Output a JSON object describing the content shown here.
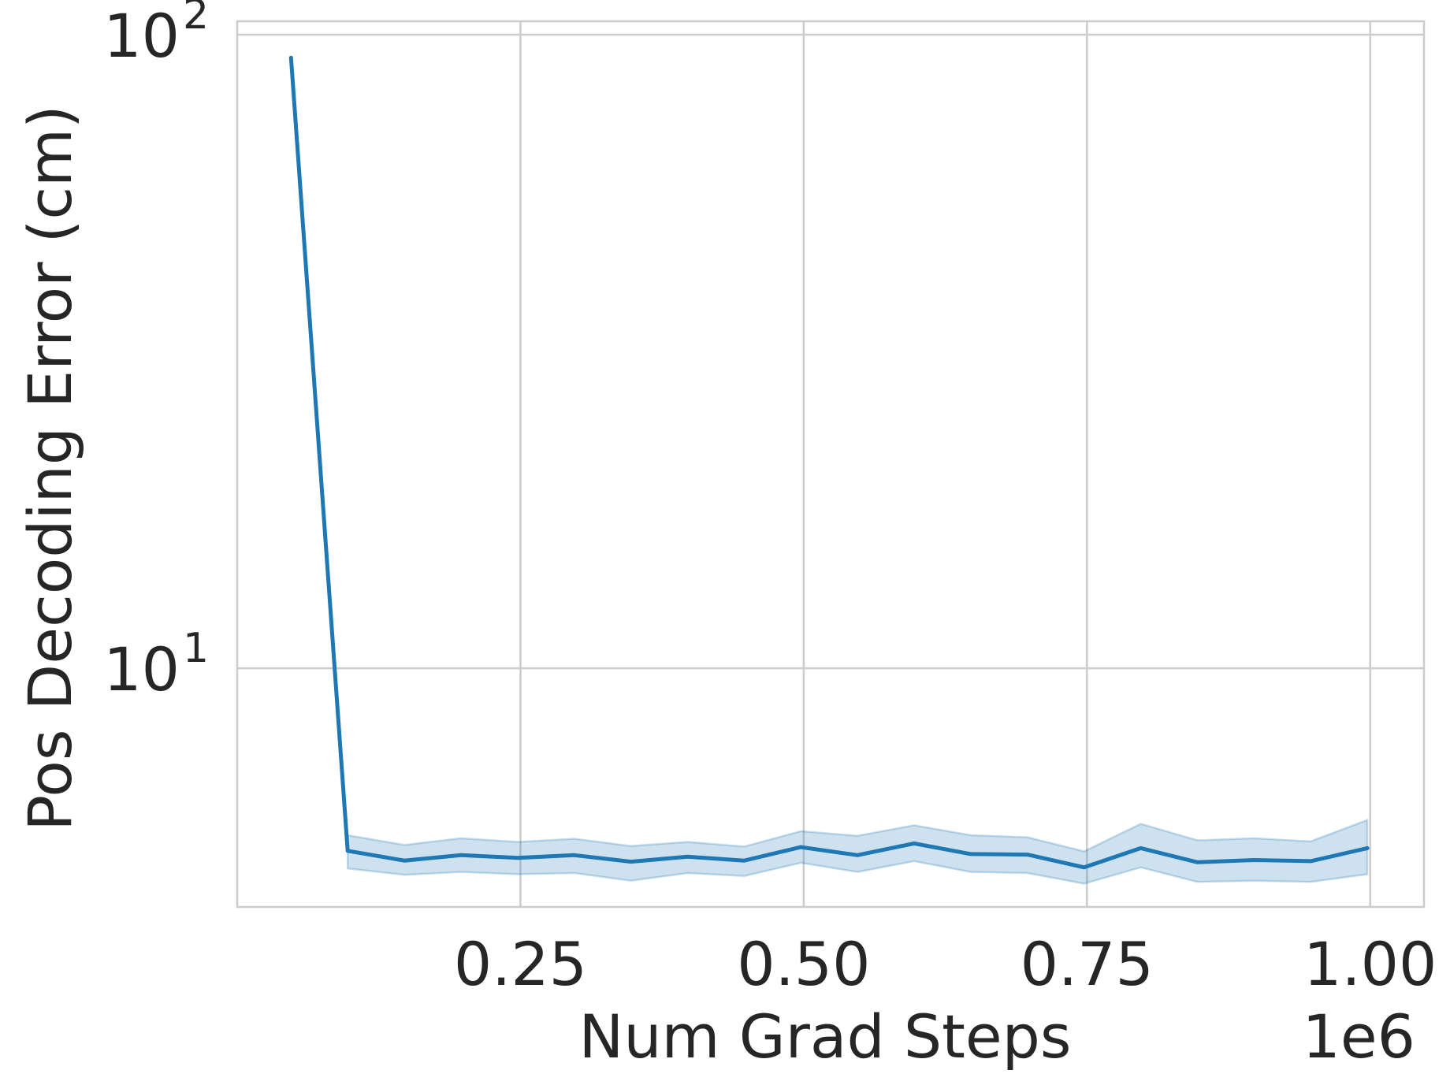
{
  "chart_data": {
    "type": "line",
    "xlabel": "Num Grad Steps",
    "ylabel": "Pos Decoding Error (cm)",
    "x_offset_label": "1e6",
    "x_scale_factor": 1000000,
    "xlim": [
      0,
      1047500
    ],
    "ylim": [
      4.2,
      105
    ],
    "yscale": "log",
    "grid": true,
    "x_ticks": [
      {
        "value": 250000,
        "label": "0.25"
      },
      {
        "value": 500000,
        "label": "0.50"
      },
      {
        "value": 750000,
        "label": "0.75"
      },
      {
        "value": 1000000,
        "label": "1.00"
      }
    ],
    "y_ticks": [
      {
        "value": 10,
        "base": "10",
        "exp": "1"
      },
      {
        "value": 100,
        "base": "10",
        "exp": "2"
      }
    ],
    "series": [
      {
        "color": "#1f77b4",
        "x": [
          47500,
          97500,
          147500,
          197500,
          247500,
          297500,
          347500,
          397500,
          447500,
          497500,
          547500,
          597500,
          647500,
          697500,
          747500,
          797500,
          847500,
          897500,
          947500,
          997500
        ],
        "y": [
          92,
          5.15,
          4.97,
          5.07,
          5.02,
          5.07,
          4.95,
          5.04,
          4.97,
          5.22,
          5.07,
          5.29,
          5.09,
          5.08,
          4.85,
          5.2,
          4.94,
          4.98,
          4.96,
          5.2
        ],
        "y_lower": [
          null,
          4.83,
          4.72,
          4.77,
          4.73,
          4.75,
          4.62,
          4.75,
          4.7,
          4.93,
          4.77,
          4.96,
          4.77,
          4.75,
          4.57,
          4.85,
          4.6,
          4.62,
          4.6,
          4.73
        ],
        "y_upper": [
          null,
          5.45,
          5.26,
          5.39,
          5.32,
          5.38,
          5.24,
          5.32,
          5.23,
          5.53,
          5.44,
          5.65,
          5.45,
          5.41,
          5.14,
          5.68,
          5.35,
          5.39,
          5.33,
          5.76
        ]
      }
    ]
  }
}
